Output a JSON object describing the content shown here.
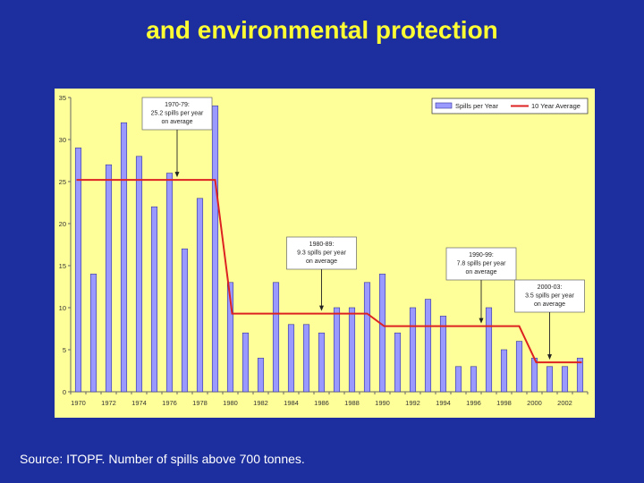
{
  "slide": {
    "title": "and environmental protection",
    "source": "Source: ITOPF. Number of spills above 700 tonnes."
  },
  "colors": {
    "background": "#1d2f9e",
    "title": "#ffff33",
    "plot_area": "#ffff99",
    "bar_fill": "#9999ff",
    "bar_stroke": "#333399",
    "average_line": "#dd2222"
  },
  "chart_data": {
    "type": "bar",
    "title": "",
    "xlabel": "",
    "ylabel": "",
    "ylim": [
      0,
      35
    ],
    "yticks": [
      0,
      5,
      10,
      15,
      20,
      25,
      30,
      35
    ],
    "x_tick_labels": [
      "1970",
      "1972",
      "1974",
      "1976",
      "1978",
      "1980",
      "1982",
      "1984",
      "1986",
      "1988",
      "1990",
      "1992",
      "1994",
      "1996",
      "1998",
      "2000",
      "2002"
    ],
    "grid": false,
    "legend_position": "top-right",
    "categories": [
      1970,
      1971,
      1972,
      1973,
      1974,
      1975,
      1976,
      1977,
      1978,
      1979,
      1980,
      1981,
      1982,
      1983,
      1984,
      1985,
      1986,
      1987,
      1988,
      1989,
      1990,
      1991,
      1992,
      1993,
      1994,
      1995,
      1996,
      1997,
      1998,
      1999,
      2000,
      2001,
      2002,
      2003
    ],
    "series": [
      {
        "name": "Spills per Year",
        "kind": "bar",
        "values": [
          29,
          14,
          27,
          32,
          28,
          22,
          26,
          17,
          23,
          34,
          13,
          7,
          4,
          13,
          8,
          8,
          7,
          10,
          10,
          13,
          14,
          7,
          10,
          11,
          9,
          3,
          3,
          10,
          5,
          6,
          4,
          3,
          3,
          4
        ]
      },
      {
        "name": "10 Year Average",
        "kind": "step-line",
        "segments": [
          {
            "from": 1970,
            "to": 1979,
            "value": 25.2
          },
          {
            "from": 1980,
            "to": 1989,
            "value": 9.3
          },
          {
            "from": 1990,
            "to": 1999,
            "value": 7.8
          },
          {
            "from": 2000,
            "to": 2003,
            "value": 3.5
          }
        ]
      }
    ],
    "annotations": [
      {
        "lines": [
          "1970-79:",
          "25.2 spills per year",
          "on average"
        ],
        "year": 1976.5,
        "value": 25.2
      },
      {
        "lines": [
          "1980-89:",
          "9.3 spills per year",
          "on average"
        ],
        "year": 1986,
        "value": 9.3
      },
      {
        "lines": [
          "1990-99:",
          "7.8 spills per year",
          "on average"
        ],
        "year": 1996.5,
        "value": 7.8
      },
      {
        "lines": [
          "2000-03:",
          "3.5 spills per year",
          "on average"
        ],
        "year": 2001,
        "value": 3.5
      }
    ]
  }
}
